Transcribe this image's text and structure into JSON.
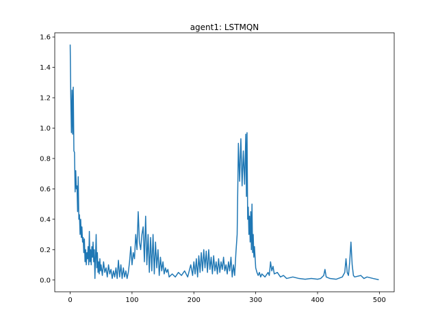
{
  "chart_data": {
    "type": "line",
    "title": "agent1: LSTMQN",
    "x": [
      0,
      1,
      2,
      3,
      4,
      5,
      6,
      7,
      8,
      9,
      10,
      11,
      12,
      13,
      14,
      15,
      16,
      17,
      18,
      19,
      20,
      21,
      22,
      23,
      24,
      25,
      26,
      27,
      28,
      29,
      30,
      31,
      32,
      33,
      34,
      35,
      36,
      37,
      38,
      39,
      40,
      41,
      42,
      43,
      44,
      45,
      46,
      47,
      48,
      49,
      50,
      52,
      54,
      56,
      58,
      60,
      62,
      64,
      66,
      68,
      70,
      72,
      74,
      76,
      78,
      80,
      82,
      84,
      86,
      88,
      90,
      92,
      94,
      96,
      98,
      100,
      102,
      104,
      106,
      108,
      110,
      112,
      114,
      116,
      118,
      120,
      122,
      124,
      126,
      128,
      130,
      132,
      134,
      136,
      138,
      140,
      142,
      144,
      146,
      148,
      150,
      152,
      154,
      156,
      158,
      160,
      165,
      170,
      175,
      180,
      185,
      190,
      195,
      198,
      200,
      202,
      204,
      206,
      208,
      210,
      212,
      214,
      216,
      218,
      220,
      222,
      224,
      226,
      228,
      230,
      232,
      234,
      236,
      238,
      240,
      242,
      244,
      246,
      248,
      250,
      252,
      254,
      256,
      258,
      260,
      262,
      264,
      266,
      268,
      270,
      272,
      274,
      276,
      278,
      280,
      282,
      284,
      285,
      286,
      287,
      288,
      289,
      290,
      291,
      292,
      293,
      294,
      295,
      296,
      297,
      298,
      300,
      302,
      304,
      306,
      308,
      310,
      315,
      320,
      322,
      324,
      326,
      328,
      330,
      335,
      340,
      345,
      350,
      360,
      370,
      380,
      390,
      400,
      405,
      410,
      412,
      414,
      420,
      430,
      440,
      444,
      446,
      448,
      450,
      452,
      454,
      456,
      458,
      460,
      470,
      475,
      480,
      490,
      499
    ],
    "series": [
      {
        "name": "agent1",
        "color": "#1f77b4",
        "values": [
          1.55,
          1.2,
          0.97,
          1.25,
          0.96,
          1.27,
          0.85,
          0.84,
          0.58,
          0.72,
          0.6,
          0.62,
          0.45,
          0.68,
          0.4,
          0.43,
          0.3,
          0.4,
          0.28,
          0.35,
          0.25,
          0.28,
          0.18,
          0.27,
          0.12,
          0.2,
          0.1,
          0.18,
          0.14,
          0.22,
          0.1,
          0.32,
          0.12,
          0.2,
          0.1,
          0.22,
          0.15,
          0.25,
          0.12,
          0.2,
          0.01,
          0.15,
          0.3,
          0.08,
          0.18,
          0.05,
          0.12,
          0.04,
          0.14,
          0.06,
          0.1,
          0.03,
          0.12,
          0.05,
          0.08,
          0.02,
          0.1,
          0.04,
          0.07,
          0.01,
          0.06,
          0.02,
          0.08,
          0.01,
          0.13,
          0.02,
          0.1,
          0.01,
          0.08,
          0.02,
          0.06,
          0.01,
          0.05,
          0.12,
          0.22,
          0.1,
          0.18,
          0.14,
          0.3,
          0.2,
          0.45,
          0.25,
          0.2,
          0.3,
          0.35,
          0.12,
          0.42,
          0.1,
          0.3,
          0.05,
          0.28,
          0.06,
          0.3,
          0.04,
          0.25,
          0.08,
          0.2,
          0.03,
          0.15,
          0.06,
          0.12,
          0.04,
          0.08,
          0.05,
          0.07,
          0.02,
          0.04,
          0.02,
          0.05,
          0.03,
          0.06,
          0.02,
          0.1,
          0.03,
          0.12,
          0.04,
          0.14,
          0.02,
          0.16,
          0.05,
          0.18,
          0.06,
          0.2,
          0.08,
          0.19,
          0.05,
          0.2,
          0.07,
          0.15,
          0.04,
          0.16,
          0.06,
          0.12,
          0.04,
          0.14,
          0.05,
          0.12,
          0.07,
          0.15,
          0.06,
          0.1,
          0.04,
          0.12,
          0.06,
          0.15,
          0.02,
          0.1,
          0.03,
          0.18,
          0.3,
          0.9,
          0.65,
          0.93,
          0.62,
          0.85,
          0.63,
          0.96,
          0.55,
          0.97,
          0.4,
          0.48,
          0.3,
          0.42,
          0.25,
          0.45,
          0.2,
          0.5,
          0.18,
          0.3,
          0.15,
          0.22,
          0.08,
          0.05,
          0.03,
          0.05,
          0.02,
          0.04,
          0.02,
          0.05,
          0.03,
          0.12,
          0.06,
          0.09,
          0.04,
          0.05,
          0.02,
          0.03,
          0.01,
          0.02,
          0.01,
          0.005,
          0.01,
          0.005,
          0.01,
          0.03,
          0.07,
          0.02,
          0.01,
          0.005,
          0.02,
          0.05,
          0.14,
          0.05,
          0.03,
          0.12,
          0.25,
          0.1,
          0.03,
          0.02,
          0.03,
          0.01,
          0.02,
          0.01,
          0.002
        ]
      }
    ],
    "xlim": [
      -24.95,
      523.95
    ],
    "ylim": [
      -0.0775,
      1.6275
    ],
    "xticks": [
      0,
      100,
      200,
      300,
      400,
      500
    ],
    "yticks": [
      {
        "value": 0,
        "label": "0.0"
      },
      0.2,
      0.4,
      0.6,
      0.8,
      {
        "value": 1,
        "label": "1.0"
      },
      1.2,
      1.4,
      1.6
    ]
  }
}
